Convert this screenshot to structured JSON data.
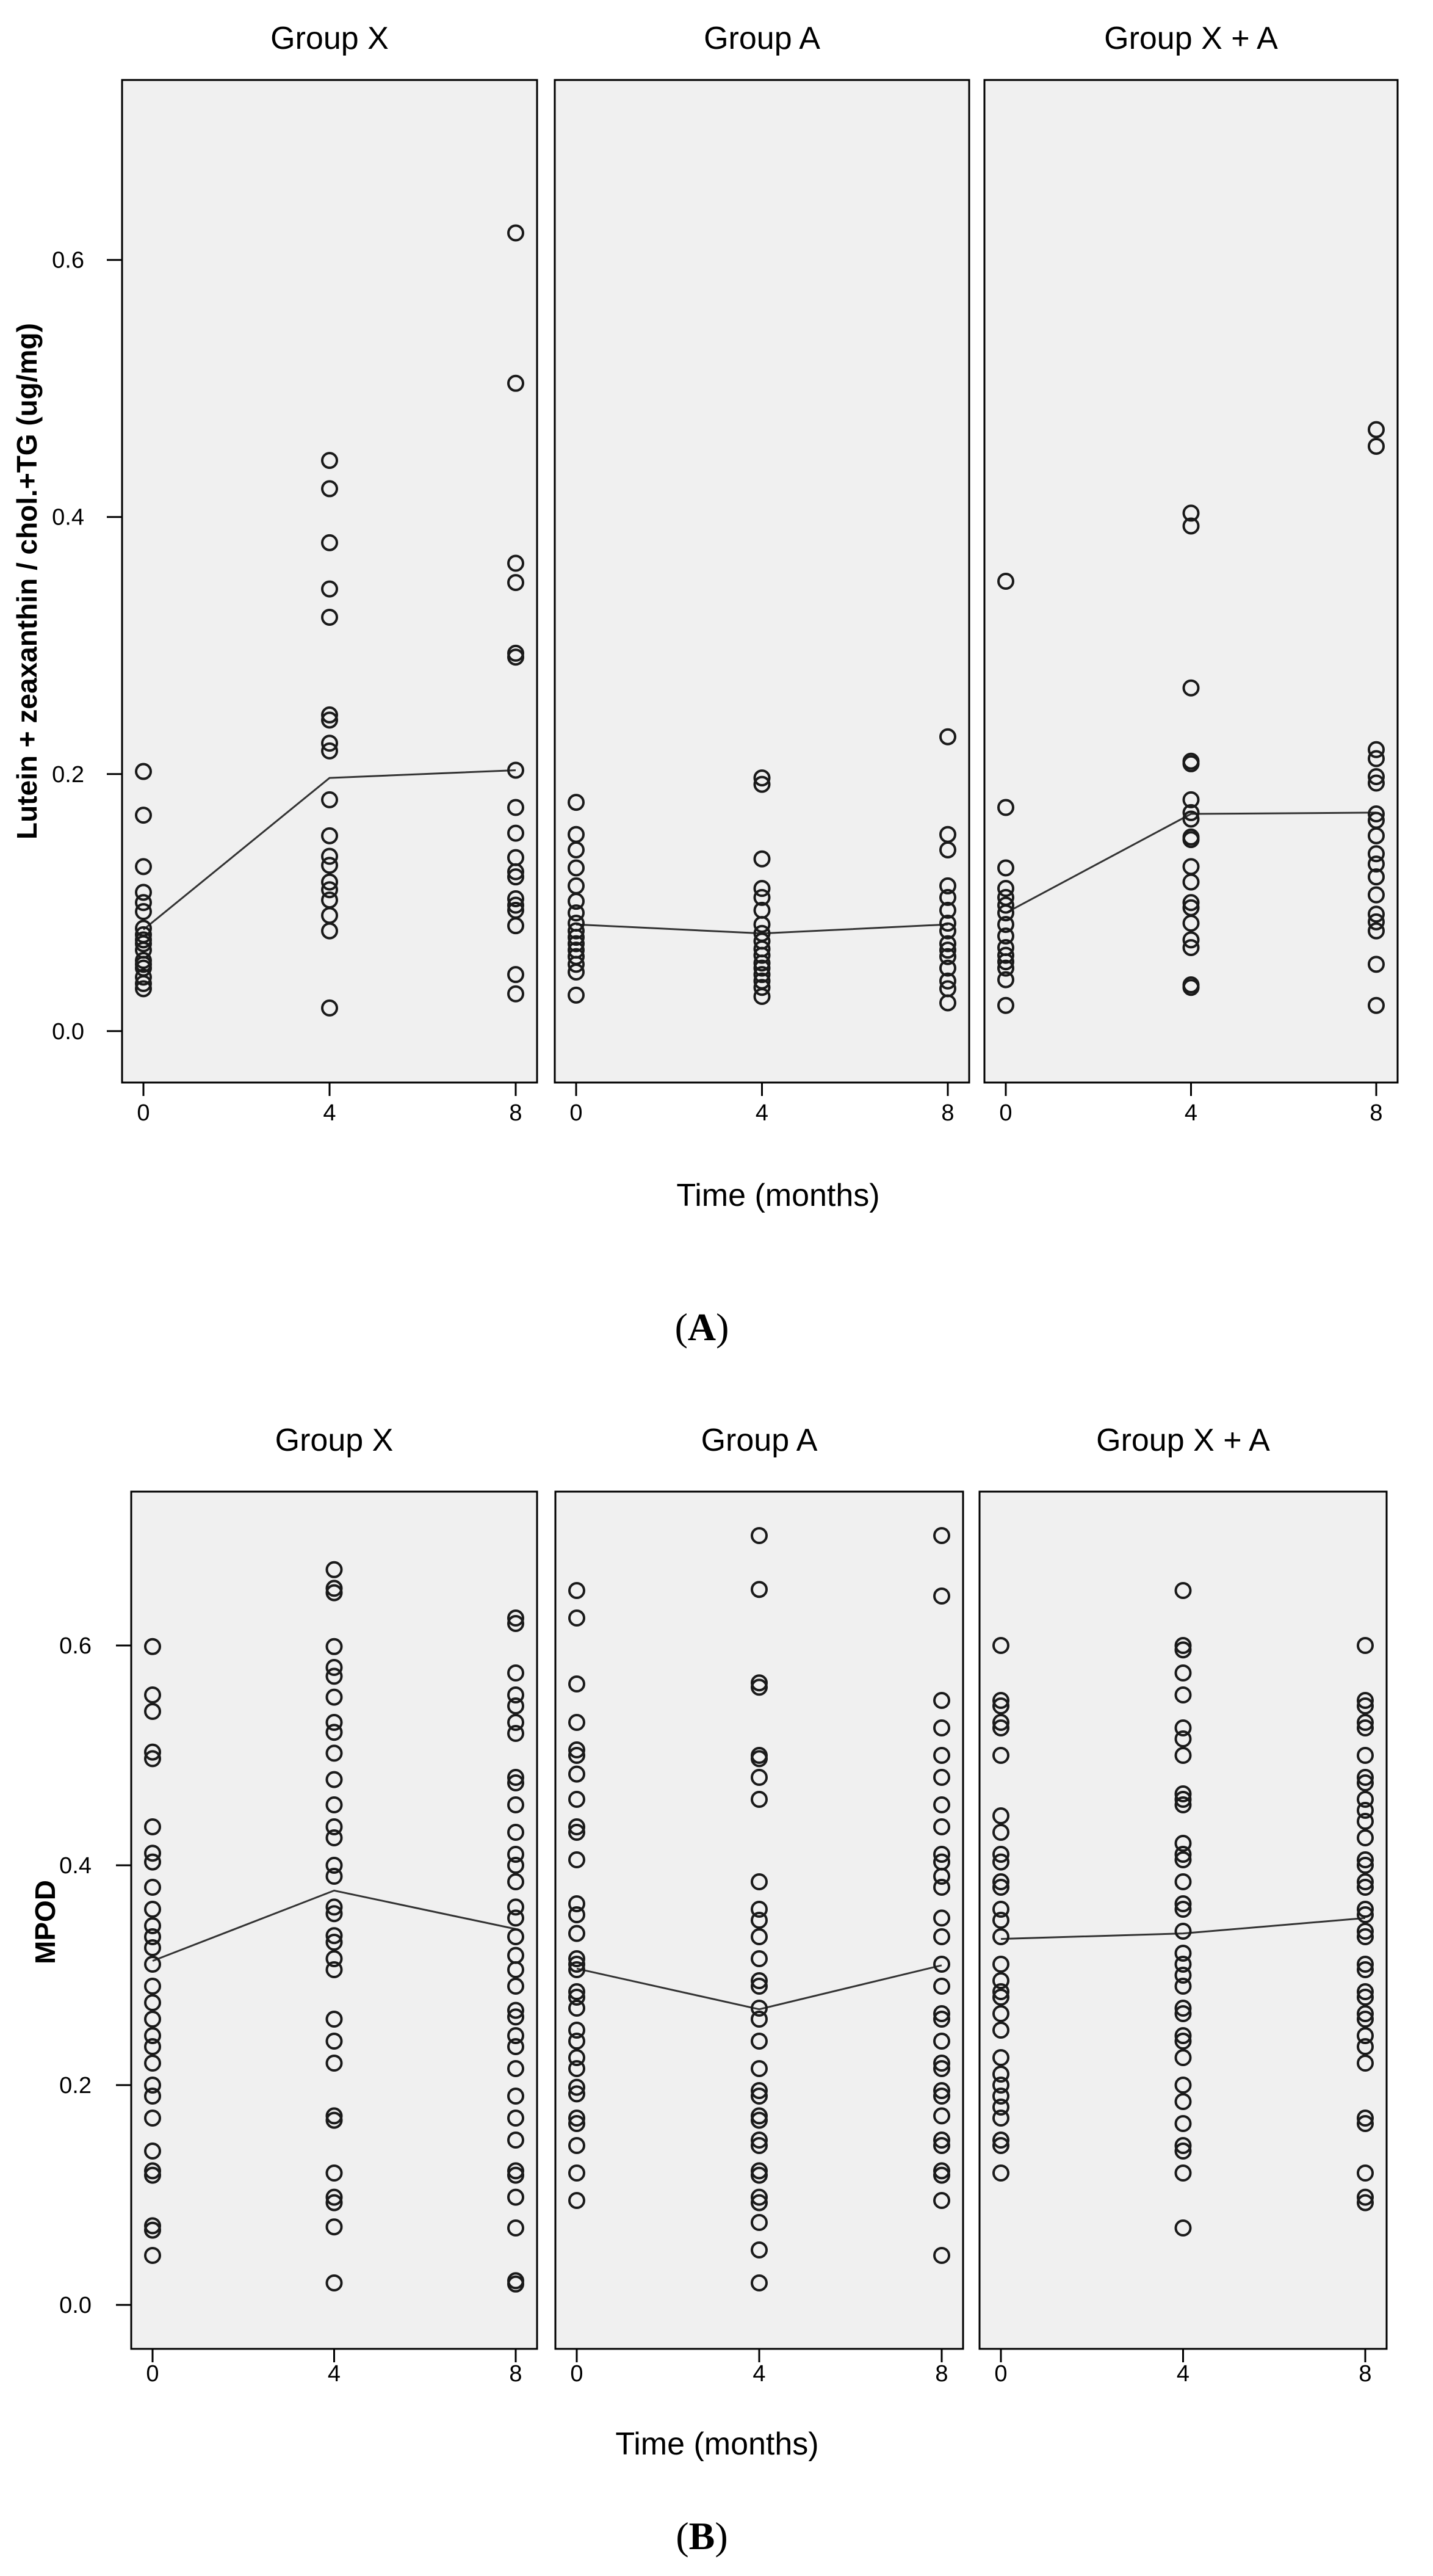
{
  "chart_data": [
    {
      "panel": "A",
      "type": "scatter",
      "figure_label": {
        "open": "(",
        "letter": "A",
        "close": ")"
      },
      "ylabel": "Lutein + zeaxanthin / chol.+TG (ug/mg)",
      "xlabel": "Time (months)",
      "ylim": [
        -0.04,
        0.74
      ],
      "yticks": [
        "0.0",
        "0.2",
        "0.4",
        "0.6"
      ],
      "ytick_values": [
        0.0,
        0.2,
        0.4,
        0.6
      ],
      "xticks": [
        0,
        4,
        8
      ],
      "background": "#f0f0f0",
      "mean_line_color": "#333333",
      "groups": [
        {
          "name": "Group X",
          "mean": [
            0.079,
            0.197,
            0.203
          ],
          "points": {
            "0": [
              0.202,
              0.168,
              0.128,
              0.108,
              0.1,
              0.093,
              0.08,
              0.075,
              0.071,
              0.068,
              0.063,
              0.055,
              0.052,
              0.049,
              0.042,
              0.037,
              0.033
            ],
            "4": [
              0.444,
              0.422,
              0.38,
              0.344,
              0.322,
              0.246,
              0.242,
              0.224,
              0.218,
              0.18,
              0.152,
              0.136,
              0.129,
              0.116,
              0.11,
              0.102,
              0.09,
              0.078,
              0.018
            ],
            "8": [
              0.621,
              0.504,
              0.364,
              0.349,
              0.294,
              0.291,
              0.203,
              0.174,
              0.154,
              0.135,
              0.124,
              0.12,
              0.103,
              0.098,
              0.094,
              0.082,
              0.044,
              0.029
            ]
          }
        },
        {
          "name": "Group A",
          "mean": [
            0.083,
            0.076,
            0.083
          ],
          "points": {
            "0": [
              0.178,
              0.153,
              0.141,
              0.127,
              0.113,
              0.101,
              0.092,
              0.084,
              0.078,
              0.073,
              0.068,
              0.063,
              0.058,
              0.052,
              0.046,
              0.028
            ],
            "4": [
              0.197,
              0.192,
              0.134,
              0.111,
              0.104,
              0.094,
              0.083,
              0.076,
              0.07,
              0.064,
              0.059,
              0.053,
              0.049,
              0.044,
              0.039,
              0.034,
              0.027
            ],
            "8": [
              0.229,
              0.153,
              0.141,
              0.113,
              0.104,
              0.094,
              0.084,
              0.078,
              0.068,
              0.063,
              0.058,
              0.049,
              0.039,
              0.033,
              0.022
            ]
          }
        },
        {
          "name": "Group X + A",
          "mean": [
            0.092,
            0.169,
            0.17
          ],
          "points": {
            "0": [
              0.35,
              0.174,
              0.127,
              0.111,
              0.104,
              0.098,
              0.092,
              0.083,
              0.074,
              0.065,
              0.059,
              0.054,
              0.049,
              0.04,
              0.02
            ],
            "4": [
              0.403,
              0.393,
              0.267,
              0.21,
              0.208,
              0.18,
              0.17,
              0.165,
              0.151,
              0.149,
              0.128,
              0.116,
              0.1,
              0.096,
              0.084,
              0.071,
              0.065,
              0.036,
              0.034
            ],
            "8": [
              0.468,
              0.455,
              0.219,
              0.212,
              0.198,
              0.193,
              0.169,
              0.164,
              0.152,
              0.138,
              0.13,
              0.12,
              0.106,
              0.091,
              0.085,
              0.078,
              0.052,
              0.02
            ]
          }
        }
      ]
    },
    {
      "panel": "B",
      "type": "scatter",
      "figure_label": {
        "open": "(",
        "letter": "B",
        "close": ")"
      },
      "ylabel": "MPOD",
      "xlabel": "Time (months)",
      "ylim": [
        -0.04,
        0.74
      ],
      "yticks": [
        "0.0",
        "0.2",
        "0.4",
        "0.6"
      ],
      "ytick_values": [
        0.0,
        0.2,
        0.4,
        0.6
      ],
      "xticks": [
        0,
        4,
        8
      ],
      "background": "#f0f0f0",
      "mean_line_color": "#333333",
      "groups": [
        {
          "name": "Group X",
          "mean": [
            0.313,
            0.377,
            0.342
          ],
          "points": {
            "0": [
              0.599,
              0.555,
              0.54,
              0.503,
              0.497,
              0.435,
              0.411,
              0.403,
              0.38,
              0.36,
              0.345,
              0.335,
              0.325,
              0.31,
              0.29,
              0.275,
              0.26,
              0.245,
              0.235,
              0.22,
              0.2,
              0.19,
              0.17,
              0.14,
              0.122,
              0.118,
              0.072,
              0.068,
              0.045
            ],
            "4": [
              0.669,
              0.652,
              0.648,
              0.599,
              0.58,
              0.572,
              0.553,
              0.53,
              0.521,
              0.502,
              0.478,
              0.455,
              0.435,
              0.425,
              0.4,
              0.39,
              0.362,
              0.356,
              0.336,
              0.33,
              0.315,
              0.305,
              0.26,
              0.24,
              0.22,
              0.172,
              0.168,
              0.12,
              0.098,
              0.093,
              0.071,
              0.02
            ],
            "8": [
              0.625,
              0.62,
              0.575,
              0.555,
              0.545,
              0.53,
              0.52,
              0.48,
              0.475,
              0.455,
              0.43,
              0.41,
              0.4,
              0.385,
              0.362,
              0.352,
              0.335,
              0.318,
              0.305,
              0.29,
              0.268,
              0.262,
              0.245,
              0.235,
              0.215,
              0.19,
              0.17,
              0.15,
              0.122,
              0.118,
              0.098,
              0.07,
              0.022,
              0.019
            ]
          }
        },
        {
          "name": "Group A",
          "mean": [
            0.306,
            0.269,
            0.309
          ],
          "points": {
            "0": [
              0.65,
              0.625,
              0.565,
              0.53,
              0.505,
              0.5,
              0.483,
              0.46,
              0.435,
              0.43,
              0.405,
              0.365,
              0.355,
              0.338,
              0.315,
              0.31,
              0.305,
              0.285,
              0.28,
              0.27,
              0.25,
              0.24,
              0.225,
              0.215,
              0.198,
              0.192,
              0.17,
              0.165,
              0.145,
              0.12,
              0.095
            ],
            "4": [
              0.7,
              0.651,
              0.566,
              0.562,
              0.5,
              0.497,
              0.48,
              0.46,
              0.385,
              0.36,
              0.35,
              0.335,
              0.315,
              0.295,
              0.29,
              0.27,
              0.26,
              0.24,
              0.215,
              0.195,
              0.19,
              0.172,
              0.168,
              0.15,
              0.145,
              0.122,
              0.118,
              0.098,
              0.093,
              0.075,
              0.05,
              0.02
            ],
            "8": [
              0.7,
              0.645,
              0.55,
              0.525,
              0.5,
              0.48,
              0.455,
              0.435,
              0.41,
              0.403,
              0.39,
              0.38,
              0.352,
              0.335,
              0.31,
              0.29,
              0.265,
              0.26,
              0.24,
              0.22,
              0.215,
              0.195,
              0.19,
              0.172,
              0.15,
              0.145,
              0.122,
              0.118,
              0.095,
              0.045
            ]
          }
        },
        {
          "name": "Group X + A",
          "mean": [
            0.333,
            0.338,
            0.352
          ],
          "points": {
            "0": [
              0.6,
              0.55,
              0.545,
              0.53,
              0.525,
              0.5,
              0.445,
              0.43,
              0.41,
              0.403,
              0.385,
              0.38,
              0.36,
              0.35,
              0.335,
              0.31,
              0.295,
              0.285,
              0.28,
              0.265,
              0.25,
              0.225,
              0.21,
              0.2,
              0.19,
              0.18,
              0.17,
              0.15,
              0.145,
              0.12
            ],
            "4": [
              0.65,
              0.6,
              0.596,
              0.575,
              0.555,
              0.525,
              0.515,
              0.5,
              0.465,
              0.46,
              0.455,
              0.42,
              0.41,
              0.405,
              0.385,
              0.365,
              0.36,
              0.34,
              0.32,
              0.31,
              0.3,
              0.29,
              0.27,
              0.265,
              0.245,
              0.24,
              0.225,
              0.2,
              0.185,
              0.165,
              0.145,
              0.14,
              0.12,
              0.07
            ],
            "8": [
              0.6,
              0.55,
              0.545,
              0.53,
              0.525,
              0.5,
              0.48,
              0.475,
              0.46,
              0.45,
              0.44,
              0.425,
              0.405,
              0.4,
              0.385,
              0.38,
              0.36,
              0.355,
              0.34,
              0.335,
              0.31,
              0.305,
              0.285,
              0.28,
              0.265,
              0.26,
              0.245,
              0.235,
              0.22,
              0.17,
              0.165,
              0.12,
              0.098,
              0.093
            ]
          }
        }
      ]
    }
  ]
}
